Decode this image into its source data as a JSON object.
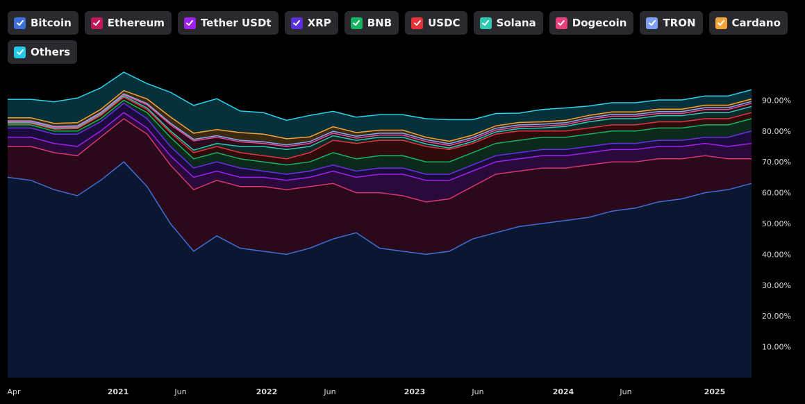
{
  "chart_data": {
    "type": "area",
    "stacked": true,
    "title": "",
    "xlabel": "",
    "ylabel": "",
    "ylim": [
      0,
      100
    ],
    "y_ticks": [
      "10.00%",
      "20.00%",
      "30.00%",
      "40.00%",
      "50.00%",
      "60.00%",
      "70.00%",
      "80.00%",
      "90.00%"
    ],
    "x_ticks": [
      {
        "label": "Apr",
        "major": false
      },
      {
        "label": "2021",
        "major": true
      },
      {
        "label": "Jun",
        "major": false
      },
      {
        "label": "2022",
        "major": true
      },
      {
        "label": "Jun",
        "major": false
      },
      {
        "label": "2023",
        "major": true
      },
      {
        "label": "Jun",
        "major": false
      },
      {
        "label": "2024",
        "major": true
      },
      {
        "label": "Jun",
        "major": false
      },
      {
        "label": "2025",
        "major": true
      }
    ],
    "x": [
      "2020-04",
      "2020-06",
      "2020-08",
      "2020-10",
      "2020-12",
      "2021-01",
      "2021-02",
      "2021-04",
      "2021-05",
      "2021-06",
      "2021-08",
      "2021-10",
      "2021-12",
      "2022-02",
      "2022-04",
      "2022-05",
      "2022-07",
      "2022-09",
      "2022-11",
      "2023-01",
      "2023-03",
      "2023-05",
      "2023-07",
      "2023-09",
      "2023-11",
      "2024-01",
      "2024-03",
      "2024-05",
      "2024-07",
      "2024-09",
      "2024-11",
      "2025-01",
      "2025-03"
    ],
    "series": [
      {
        "name": "Bitcoin",
        "color": "#3d6fd9",
        "values": [
          65,
          64,
          61,
          59,
          64,
          70,
          62,
          50,
          41,
          46,
          42,
          41,
          40,
          42,
          45,
          47,
          42,
          41,
          40,
          41,
          45,
          47,
          49,
          50,
          51,
          52,
          54,
          55,
          57,
          58,
          60,
          61,
          63
        ]
      },
      {
        "name": "Ethereum",
        "color": "#d9356f",
        "values": [
          10,
          11,
          12,
          13,
          14,
          14,
          17,
          19,
          20,
          18,
          20,
          21,
          21,
          20,
          18,
          13,
          18,
          18,
          17,
          17,
          17,
          19,
          18,
          18,
          17,
          17,
          16,
          15,
          14,
          13,
          12,
          10,
          8
        ]
      },
      {
        "name": "Tether USDt",
        "color": "#a020f0",
        "values": [
          3,
          3,
          3,
          3,
          2,
          2,
          2,
          3,
          4,
          3,
          3,
          3,
          3,
          3,
          4,
          5,
          6,
          7,
          7,
          6,
          5,
          4,
          4,
          4,
          4,
          4,
          4,
          4,
          4,
          4,
          4,
          4,
          5
        ]
      },
      {
        "name": "XRP",
        "color": "#6a2ee8",
        "values": [
          3,
          3,
          3,
          4,
          3,
          3,
          3,
          3,
          3,
          3,
          3,
          2,
          2,
          2,
          2,
          2,
          2,
          2,
          2,
          2,
          2,
          2,
          2,
          2,
          2,
          2,
          2,
          2,
          2,
          2,
          2,
          3,
          4
        ]
      },
      {
        "name": "BNB",
        "color": "#13b563",
        "values": [
          1,
          1,
          1,
          1,
          1,
          1,
          2,
          3,
          3,
          3,
          3,
          3,
          3,
          3,
          4,
          4,
          4,
          4,
          4,
          4,
          4,
          4,
          4,
          4,
          4,
          4,
          4,
          4,
          4,
          4,
          4,
          4,
          4
        ]
      },
      {
        "name": "USDC",
        "color": "#e8323a",
        "values": [
          0.5,
          0.5,
          0.6,
          0.8,
          1,
          1,
          1,
          1.5,
          2,
          2,
          2,
          2,
          2,
          3,
          4,
          5,
          5,
          5,
          5,
          4,
          3,
          3,
          3,
          2,
          2,
          2,
          2,
          2,
          2,
          2,
          2,
          2,
          2
        ]
      },
      {
        "name": "Solana",
        "color": "#2ec9b0",
        "values": [
          0.2,
          0.2,
          0.3,
          0.3,
          0.4,
          0.4,
          0.5,
          0.6,
          0.8,
          1,
          2,
          3,
          3,
          2,
          1.5,
          1,
          1,
          1,
          0.8,
          0.5,
          0.6,
          0.7,
          0.8,
          1,
          1.5,
          2,
          2,
          2,
          2,
          2,
          2,
          2,
          2
        ]
      },
      {
        "name": "Dogecoin",
        "color": "#e8508a",
        "values": [
          0.3,
          0.3,
          0.3,
          0.3,
          0.3,
          0.4,
          1,
          2,
          3,
          2,
          1.5,
          1,
          1,
          1,
          0.8,
          0.7,
          0.7,
          0.7,
          0.8,
          0.8,
          0.7,
          0.6,
          0.6,
          0.6,
          0.6,
          0.7,
          0.8,
          0.8,
          0.7,
          0.7,
          1,
          1,
          1
        ]
      },
      {
        "name": "TRON",
        "color": "#8aa5f0",
        "values": [
          0.3,
          0.3,
          0.3,
          0.3,
          0.3,
          0.3,
          0.4,
          0.5,
          0.5,
          0.5,
          0.5,
          0.5,
          0.5,
          0.6,
          0.6,
          0.6,
          0.6,
          0.6,
          0.6,
          0.6,
          0.6,
          0.6,
          0.6,
          0.6,
          0.6,
          0.6,
          0.6,
          0.6,
          0.6,
          0.6,
          0.6,
          0.6,
          0.6
        ]
      },
      {
        "name": "Cardano",
        "color": "#f2a33c",
        "values": [
          1,
          1,
          1,
          1,
          1,
          1,
          1.5,
          2,
          2,
          2,
          2.5,
          2.5,
          2,
          1.5,
          1.5,
          1.2,
          1,
          1,
          0.8,
          0.8,
          0.8,
          0.8,
          0.8,
          0.8,
          0.8,
          0.8,
          0.8,
          0.8,
          0.8,
          0.8,
          0.8,
          0.8,
          0.8
        ]
      },
      {
        "name": "Others",
        "color": "#2ad4ec",
        "values": [
          6,
          6,
          7,
          8,
          7,
          6,
          5,
          8,
          9,
          10,
          7,
          7,
          6,
          7,
          5,
          5,
          5,
          5,
          6,
          7,
          5,
          4,
          3,
          4,
          4,
          3,
          3,
          3,
          3,
          3,
          3,
          3,
          3
        ]
      }
    ]
  },
  "legend": {
    "items": [
      {
        "label": "Bitcoin",
        "color": "#3d6fd9"
      },
      {
        "label": "Ethereum",
        "color": "#c2185b"
      },
      {
        "label": "Tether USDt",
        "color": "#a020f0"
      },
      {
        "label": "XRP",
        "color": "#5b2ee0"
      },
      {
        "label": "BNB",
        "color": "#13b563"
      },
      {
        "label": "USDC",
        "color": "#e8323a"
      },
      {
        "label": "Solana",
        "color": "#2ec9b0"
      },
      {
        "label": "Dogecoin",
        "color": "#e8407a"
      },
      {
        "label": "TRON",
        "color": "#7f9ff0"
      },
      {
        "label": "Cardano",
        "color": "#f2a33c"
      },
      {
        "label": "Others",
        "color": "#22c8e6"
      }
    ]
  }
}
